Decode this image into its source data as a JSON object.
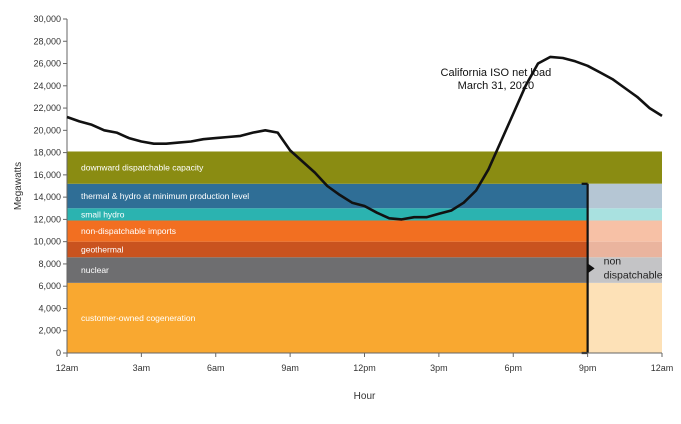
{
  "chart_data": {
    "type": "area",
    "title": "",
    "xlabel": "Hour",
    "ylabel": "Megawatts",
    "ylim": [
      0,
      30000
    ],
    "xlim": [
      0,
      24
    ],
    "y_ticks": [
      "0",
      "2,000",
      "4,000",
      "6,000",
      "8,000",
      "10,000",
      "12,000",
      "14,000",
      "16,000",
      "18,000",
      "20,000",
      "22,000",
      "24,000",
      "26,000",
      "28,000",
      "30,000"
    ],
    "x_ticks": [
      "12am",
      "3am",
      "6am",
      "9am",
      "12pm",
      "3pm",
      "6pm",
      "9pm",
      "12am"
    ],
    "grid": false,
    "bands": [
      {
        "name": "customer-owned cogeneration",
        "from": 0,
        "to": 6300,
        "color": "#f9a830",
        "fade_color": "#fde1b7"
      },
      {
        "name": "nuclear",
        "from": 6300,
        "to": 8600,
        "color": "#6e6e70",
        "fade_color": "#c4c4c6"
      },
      {
        "name": "geothermal",
        "from": 8600,
        "to": 10000,
        "color": "#c9531f",
        "fade_color": "#eab49e"
      },
      {
        "name": "non-dispatchable imports",
        "from": 10000,
        "to": 11900,
        "color": "#f26f21",
        "fade_color": "#f7c1a6"
      },
      {
        "name": "small hydro",
        "from": 11900,
        "to": 13000,
        "color": "#2bb3b0",
        "fade_color": "#a9e1e0"
      },
      {
        "name": "thermal & hydro at minimum production level",
        "from": 13000,
        "to": 15200,
        "color": "#2f6e96",
        "fade_color": "#b5c6d4"
      },
      {
        "name": "downward dispatchable capacity",
        "from": 15200,
        "to": 18100,
        "color": "#8a8c12",
        "fade_color": "#8a8c12"
      }
    ],
    "non_dispatchable": {
      "label_line1": "non",
      "label_line2": "dispatchable",
      "from_hour": 21,
      "to_hour": 24,
      "top": 15200
    },
    "series": [
      {
        "name": "California ISO net load",
        "annotation_line1": "California ISO net load",
        "annotation_line2": "March 31, 2020",
        "x": [
          0,
          0.5,
          1,
          1.5,
          2,
          2.5,
          3,
          3.5,
          4,
          4.5,
          5,
          5.5,
          6,
          6.5,
          7,
          7.5,
          8,
          8.5,
          9,
          9.5,
          10,
          10.5,
          11,
          11.5,
          12,
          12.5,
          13,
          13.5,
          14,
          14.5,
          15,
          15.5,
          16,
          16.5,
          17,
          17.5,
          18,
          18.5,
          19,
          19.5,
          20,
          20.5,
          21,
          21.5,
          22,
          22.5,
          23,
          23.5,
          24
        ],
        "y": [
          21200,
          20800,
          20500,
          20000,
          19800,
          19300,
          19000,
          18800,
          18800,
          18900,
          19000,
          19200,
          19300,
          19400,
          19500,
          19800,
          20000,
          19800,
          18200,
          17200,
          16200,
          15000,
          14200,
          13500,
          13200,
          12600,
          12100,
          12000,
          12200,
          12200,
          12500,
          12800,
          13500,
          14600,
          16500,
          19000,
          21500,
          24000,
          26000,
          26600,
          26500,
          26200,
          25800,
          25200,
          24600,
          23800,
          23000,
          22000,
          21300
        ]
      }
    ]
  }
}
